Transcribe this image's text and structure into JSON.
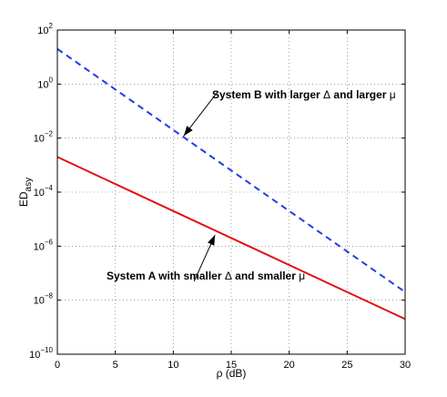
{
  "chart_data": {
    "type": "line",
    "xlabel": "ρ (dB)",
    "ylabel_main": "ED",
    "ylabel_sub": "asy",
    "xlim": [
      0,
      30
    ],
    "ylim": [
      1e-10,
      100
    ],
    "yscale": "log",
    "grid": true,
    "x_ticks": [
      0,
      5,
      10,
      15,
      20,
      25,
      30
    ],
    "y_ticks": [
      {
        "value": 1e-10,
        "base": "10",
        "exp": "−10"
      },
      {
        "value": 1e-08,
        "base": "10",
        "exp": "−8"
      },
      {
        "value": 1e-06,
        "base": "10",
        "exp": "−6"
      },
      {
        "value": 0.0001,
        "base": "10",
        "exp": "−4"
      },
      {
        "value": 0.01,
        "base": "10",
        "exp": "−2"
      },
      {
        "value": 1,
        "base": "10",
        "exp": "0"
      },
      {
        "value": 100,
        "base": "10",
        "exp": "2"
      }
    ],
    "series": [
      {
        "x": [
          0,
          30
        ],
        "y": [
          20,
          2e-08
        ],
        "color": "#1f3fe0",
        "style": "dashed"
      },
      {
        "x": [
          0,
          30
        ],
        "y": [
          0.002,
          2e-09
        ],
        "color": "#e01010",
        "style": "solid"
      }
    ],
    "annotations": [
      {
        "parts": [
          "System B with larger ",
          "Δ",
          " and larger ",
          "μ"
        ],
        "arrow_tip": [
          10.9,
          0.012
        ],
        "arrow_tail": [
          13.8,
          0.5
        ]
      },
      {
        "parts": [
          "System A with smaller ",
          "Δ",
          " and smaller ",
          "μ"
        ],
        "arrow_tip": [
          13.6,
          2.6e-06
        ],
        "arrow_tail": [
          11.8,
          5e-08
        ]
      }
    ]
  }
}
